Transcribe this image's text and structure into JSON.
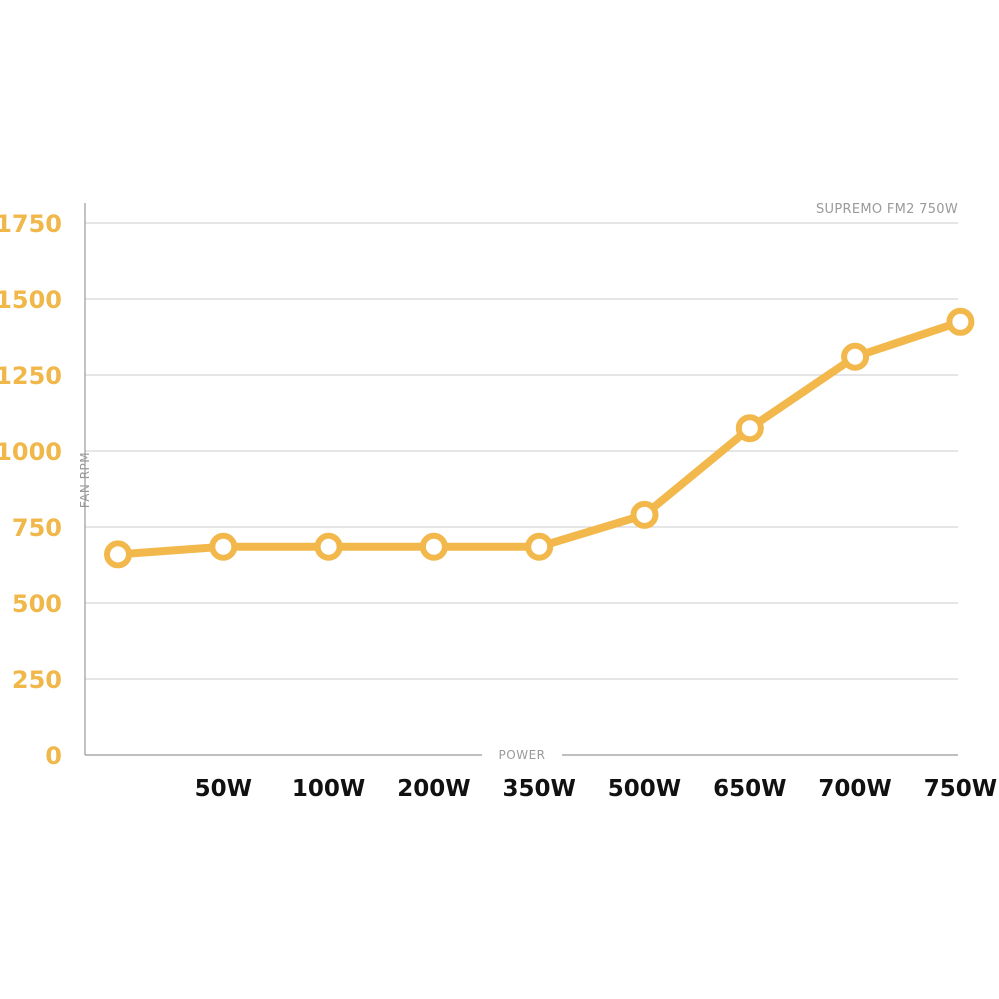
{
  "chart_data": {
    "type": "line",
    "title": "",
    "subtitle": "SUPREMO FM2 750W",
    "xlabel": "POWER",
    "ylabel": "FAN RPM",
    "categories": [
      "",
      "50W",
      "100W",
      "200W",
      "350W",
      "500W",
      "650W",
      "700W",
      "750W"
    ],
    "series": [
      {
        "values": [
          660,
          685,
          685,
          685,
          685,
          790,
          1075,
          1310,
          1425
        ]
      }
    ],
    "yticks": [
      "0",
      "250",
      "500",
      "750",
      "1000",
      "1250",
      "1500",
      "1750"
    ],
    "ylim": [
      0,
      1750
    ],
    "grid": true,
    "legend": "none",
    "colors": {
      "line": "#f2b84b",
      "marker_fill": "#ffffff",
      "ytick_text": "#f0b84a",
      "xtick_text": "#111111",
      "grid": "#cccccc",
      "axis": "#999999",
      "label_text": "#9a9a9a"
    }
  }
}
